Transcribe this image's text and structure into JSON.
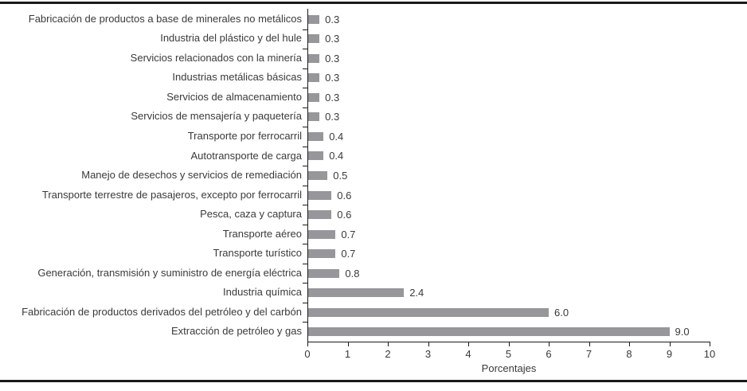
{
  "chart_data": {
    "type": "bar",
    "orientation": "horizontal",
    "title": "",
    "xlabel": "Porcentajes",
    "ylabel": "",
    "xlim": [
      0,
      10
    ],
    "xticks": [
      "0",
      "1",
      "2",
      "3",
      "4",
      "5",
      "6",
      "7",
      "8",
      "9",
      "10"
    ],
    "grid": false,
    "legend": false,
    "bar_color": "#97979b",
    "axis_color": "#1a1a1a",
    "text_color": "#3a3a3a",
    "categories": [
      "Fabricación de productos a base de minerales no metálicos",
      "Industria del plástico y del hule",
      "Servicios relacionados con la minería",
      "Industrias metálicas básicas",
      "Servicios de almacenamiento",
      "Servicios de mensajería y paquetería",
      "Transporte por ferrocarril",
      "Autotransporte de carga",
      "Manejo de desechos y servicios de remediación",
      "Transporte terrestre de pasajeros, excepto por ferrocarril",
      "Pesca, caza y captura",
      "Transporte aéreo",
      "Transporte turístico",
      "Generación, transmisión y suministro de energía eléctrica",
      "Industria química",
      "Fabricación de productos derivados del petróleo y del carbón",
      "Extracción de petróleo y gas"
    ],
    "values": [
      0.3,
      0.3,
      0.3,
      0.3,
      0.3,
      0.3,
      0.4,
      0.4,
      0.5,
      0.6,
      0.6,
      0.7,
      0.7,
      0.8,
      2.4,
      6.0,
      9.0
    ],
    "value_labels": [
      "0.3",
      "0.3",
      "0.3",
      "0.3",
      "0.3",
      "0.3",
      "0.4",
      "0.4",
      "0.5",
      "0.6",
      "0.6",
      "0.7",
      "0.7",
      "0.8",
      "2.4",
      "6.0",
      "9.0"
    ]
  }
}
